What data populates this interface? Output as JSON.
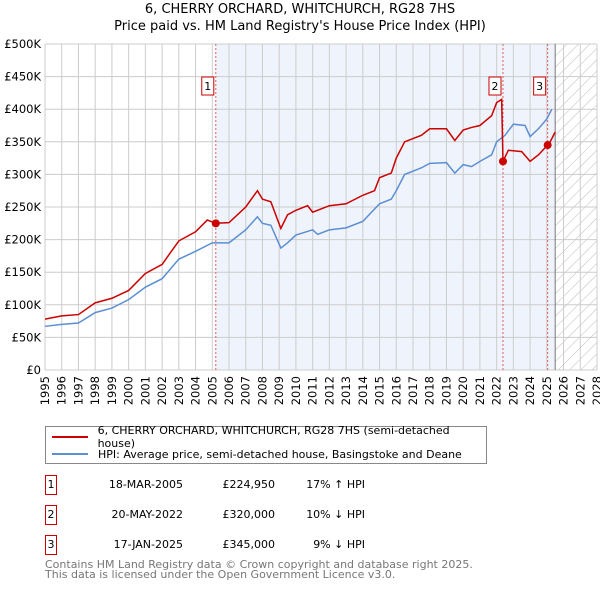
{
  "chart_data": {
    "type": "line",
    "title": "6, CHERRY ORCHARD, WHITCHURCH, RG28 7HS",
    "subtitle": "Price paid vs. HM Land Registry's House Price Index (HPI)",
    "xlim": [
      1995,
      2028
    ],
    "ylim": [
      0,
      500000
    ],
    "x_ticks": [
      "1995",
      "1996",
      "1997",
      "1998",
      "1999",
      "2000",
      "2001",
      "2002",
      "2003",
      "2004",
      "2005",
      "2006",
      "2007",
      "2008",
      "2009",
      "2010",
      "2011",
      "2012",
      "2013",
      "2014",
      "2015",
      "2016",
      "2017",
      "2018",
      "2019",
      "2020",
      "2021",
      "2022",
      "2023",
      "2024",
      "2025",
      "2026",
      "2027",
      "2028"
    ],
    "y_ticks": [
      "£0",
      "£50K",
      "£100K",
      "£150K",
      "£200K",
      "£250K",
      "£300K",
      "£350K",
      "£400K",
      "£450K",
      "£500K"
    ],
    "grid": true,
    "shaded_period": [
      2005.2,
      2025.5
    ],
    "forecast_hatch_from": 2025.5,
    "series": [
      {
        "name": "6, CHERRY ORCHARD, WHITCHURCH, RG28 7HS (semi-detached house)",
        "color": "#cc0000",
        "x": [
          1995,
          1996,
          1997,
          1998,
          1999,
          2000,
          2001,
          2002,
          2003,
          2004,
          2004.7,
          2005.2,
          2006,
          2007,
          2007.7,
          2008,
          2008.5,
          2009.1,
          2009.5,
          2010,
          2010.7,
          2011,
          2012,
          2013,
          2014,
          2014.7,
          2015,
          2015.7,
          2016,
          2016.5,
          2017,
          2017.5,
          2018,
          2019,
          2019.5,
          2020,
          2020.5,
          2021,
          2021.7,
          2022,
          2022.3,
          2022.38,
          2022.7,
          2023.5,
          2024,
          2024.5,
          2025.05,
          2025.2,
          2025.5
        ],
        "y": [
          78000,
          83000,
          85000,
          103000,
          110000,
          122000,
          148000,
          162000,
          198000,
          212000,
          230000,
          225000,
          226000,
          250000,
          275000,
          262000,
          258000,
          217000,
          238000,
          245000,
          252000,
          242000,
          252000,
          255000,
          268000,
          275000,
          295000,
          302000,
          325000,
          350000,
          355000,
          360000,
          370000,
          370000,
          352000,
          368000,
          372000,
          375000,
          390000,
          410000,
          415000,
          320000,
          337000,
          335000,
          320000,
          330000,
          345000,
          350000,
          365000
        ]
      },
      {
        "name": "HPI: Average price, semi-detached house, Basingstoke and Deane",
        "color": "#5b8fd4",
        "x": [
          1995,
          1996,
          1997,
          1998,
          1999,
          2000,
          2001,
          2002,
          2003,
          2004,
          2005,
          2006,
          2007,
          2007.7,
          2008,
          2008.5,
          2009.1,
          2009.5,
          2010,
          2011,
          2011.3,
          2012,
          2013,
          2014,
          2015,
          2015.7,
          2016,
          2016.5,
          2017,
          2017.5,
          2018,
          2019,
          2019.5,
          2020,
          2020.5,
          2021,
          2021.7,
          2022,
          2022.5,
          2023,
          2023.7,
          2024,
          2024.5,
          2025,
          2025.3
        ],
        "y": [
          67000,
          70000,
          72000,
          88000,
          95000,
          108000,
          127000,
          140000,
          170000,
          182000,
          195000,
          195000,
          215000,
          235000,
          225000,
          222000,
          187000,
          195000,
          207000,
          215000,
          208000,
          215000,
          218000,
          228000,
          255000,
          262000,
          275000,
          300000,
          305000,
          310000,
          317000,
          318000,
          302000,
          315000,
          312000,
          320000,
          330000,
          350000,
          360000,
          377000,
          375000,
          358000,
          370000,
          385000,
          400000
        ]
      }
    ],
    "sales": [
      {
        "label": "1",
        "date": "18-MAR-2005",
        "x": 2005.21,
        "price": "£224,950",
        "value": 224950,
        "hpi": "17% ↑ HPI"
      },
      {
        "label": "2",
        "date": "20-MAY-2022",
        "x": 2022.38,
        "price": "£320,000",
        "value": 320000,
        "hpi": "10% ↓ HPI"
      },
      {
        "label": "3",
        "date": "17-JAN-2025",
        "x": 2025.05,
        "price": "£345,000",
        "value": 345000,
        "hpi": "9% ↓ HPI"
      }
    ]
  },
  "footer": {
    "line1": "Contains HM Land Registry data © Crown copyright and database right 2025.",
    "line2": "This data is licensed under the Open Government Licence v3.0."
  }
}
